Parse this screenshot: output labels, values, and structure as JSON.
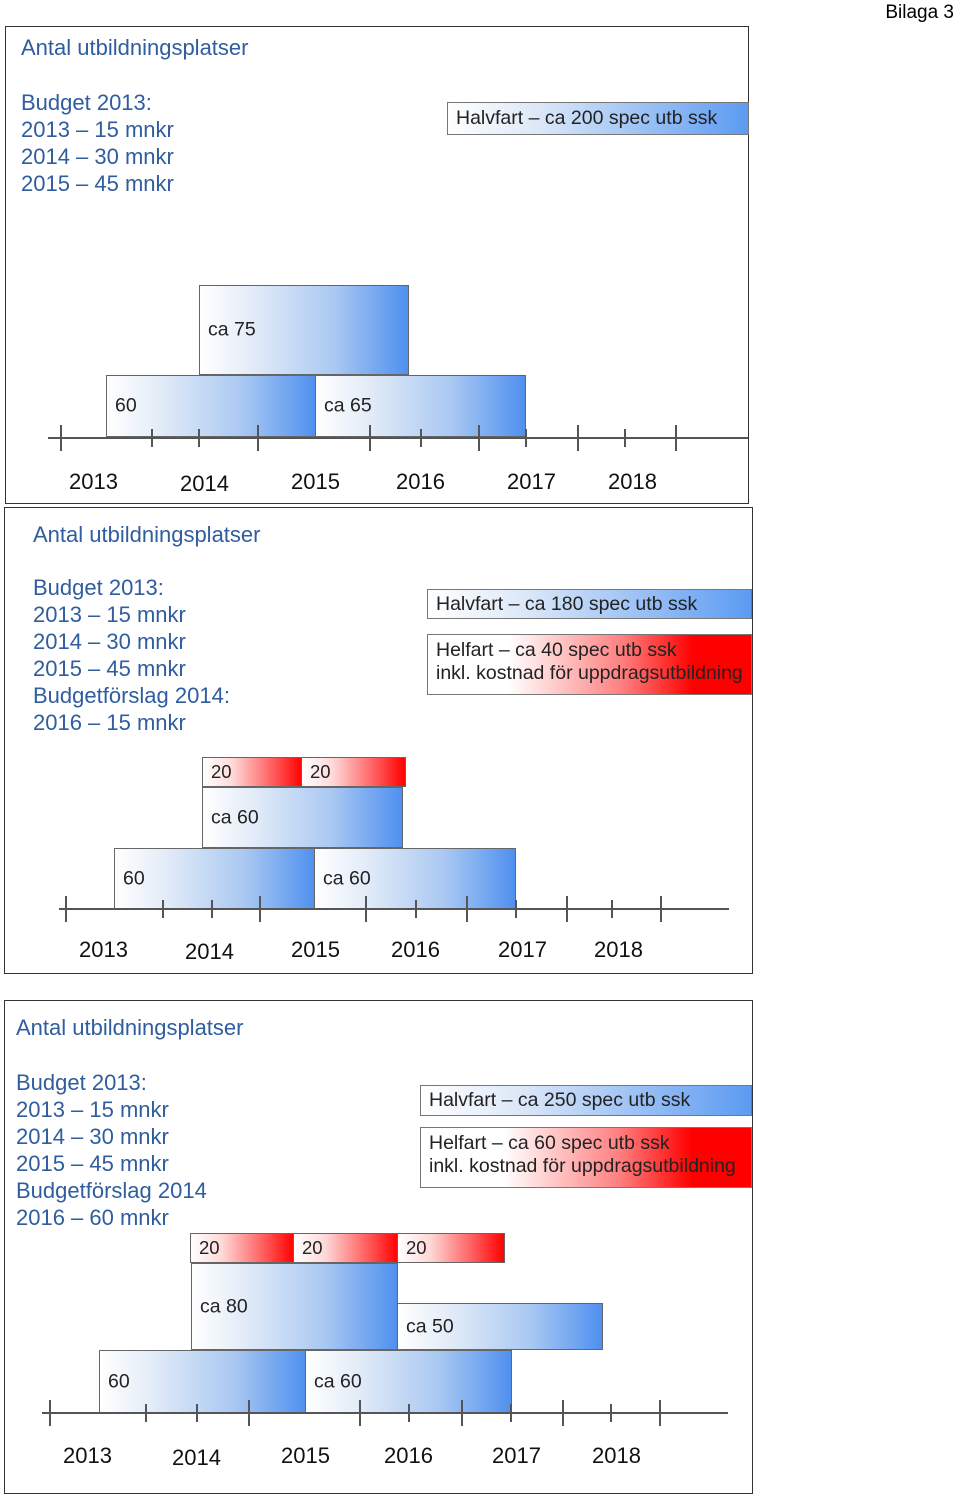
{
  "page_label": "Bilaga 3",
  "colors": {
    "title_blue": "#2f5d9e",
    "bar_blue": "#4f90ef",
    "bar_red": "#ff0000"
  },
  "panels": [
    {
      "title": "Antal utbildningsplatser",
      "budget_lines": [
        "Budget 2013:",
        "2013 – 15 mnkr",
        "2014 – 30 mnkr",
        "2015 – 45 mnkr"
      ],
      "legend": [
        {
          "type": "blue",
          "lines": [
            "Halvfart – ca 200 spec utb ssk"
          ]
        }
      ],
      "bars": [
        {
          "type": "blue",
          "label": "ca 75"
        },
        {
          "type": "blue",
          "label": "60"
        },
        {
          "type": "blue",
          "label": "ca 65"
        }
      ],
      "years": [
        "2013",
        "2014",
        "2015",
        "2016",
        "2017",
        "2018"
      ]
    },
    {
      "title": "Antal utbildningsplatser",
      "budget_lines": [
        "Budget 2013:",
        "2013 – 15 mnkr",
        "2014 – 30 mnkr",
        "2015 – 45 mnkr",
        "Budgetförslag 2014:",
        "2016 – 15 mnkr"
      ],
      "legend": [
        {
          "type": "blue",
          "lines": [
            "Halvfart – ca 180 spec utb ssk"
          ]
        },
        {
          "type": "red",
          "lines": [
            "Helfart – ca 40 spec utb ssk",
            "inkl. kostnad för uppdragsutbildning"
          ]
        }
      ],
      "bars": [
        {
          "type": "red",
          "label": "20"
        },
        {
          "type": "red",
          "label": "20"
        },
        {
          "type": "blue",
          "label": "ca 60"
        },
        {
          "type": "blue",
          "label": "60"
        },
        {
          "type": "blue",
          "label": "ca 60"
        }
      ],
      "years": [
        "2013",
        "2014",
        "2015",
        "2016",
        "2017",
        "2018"
      ]
    },
    {
      "title": "Antal utbildningsplatser",
      "budget_lines": [
        "Budget 2013:",
        "2013 – 15 mnkr",
        "2014 – 30 mnkr",
        "2015 – 45 mnkr",
        "Budgetförslag 2014",
        "2016 – 60 mnkr"
      ],
      "legend": [
        {
          "type": "blue",
          "lines": [
            "Halvfart – ca 250 spec utb ssk"
          ]
        },
        {
          "type": "red",
          "lines": [
            "Helfart – ca 60 spec utb ssk",
            "inkl. kostnad för uppdragsutbildning"
          ]
        }
      ],
      "bars": [
        {
          "type": "red",
          "label": "20"
        },
        {
          "type": "red",
          "label": "20"
        },
        {
          "type": "red",
          "label": "20"
        },
        {
          "type": "blue",
          "label": "ca 80"
        },
        {
          "type": "blue",
          "label": "ca 50"
        },
        {
          "type": "blue",
          "label": "60"
        },
        {
          "type": "blue",
          "label": "ca 60"
        }
      ],
      "years": [
        "2013",
        "2014",
        "2015",
        "2016",
        "2017",
        "2018"
      ]
    }
  ]
}
